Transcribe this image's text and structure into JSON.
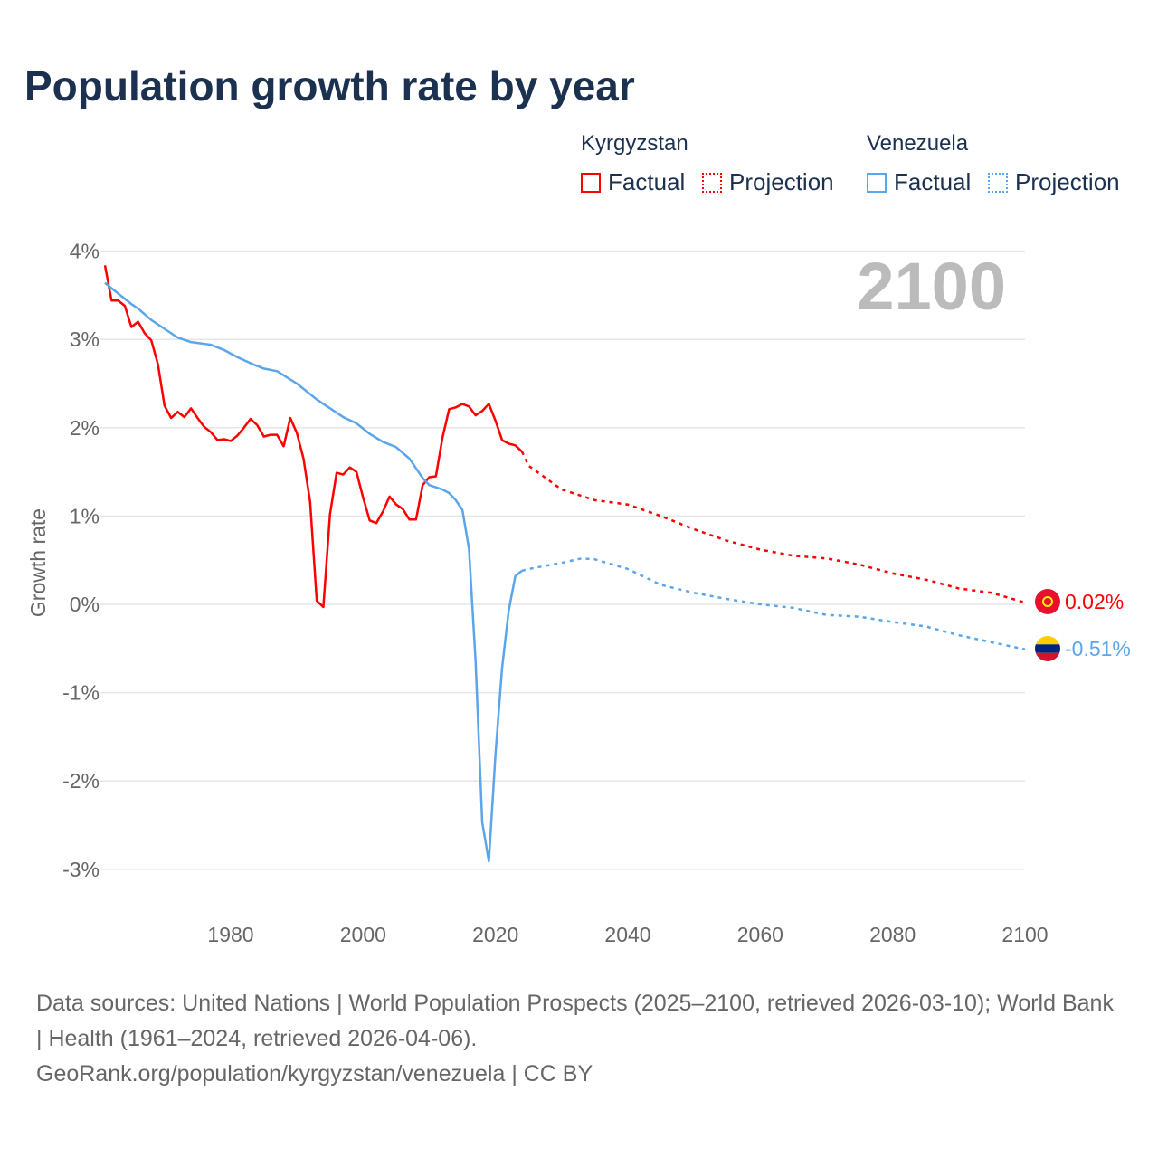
{
  "chart_data": {
    "type": "line",
    "title": "Population growth rate by year",
    "ylabel": "Growth rate",
    "xlabel": "",
    "ylim": [
      -3,
      4
    ],
    "xlim": [
      1961,
      2100
    ],
    "yticks": [
      "-3%",
      "-2%",
      "-1%",
      "0%",
      "1%",
      "2%",
      "3%",
      "4%"
    ],
    "ytick_values": [
      -3,
      -2,
      -1,
      0,
      1,
      2,
      3,
      4
    ],
    "xticks": [
      "1980",
      "2000",
      "2020",
      "2040",
      "2060",
      "2080",
      "2100"
    ],
    "xtick_values": [
      1980,
      2000,
      2020,
      2040,
      2060,
      2080,
      2100
    ],
    "year_label": "2100",
    "legend": {
      "groups": [
        {
          "name": "Kyrgyzstan",
          "factual": "Factual",
          "projection": "Projection"
        },
        {
          "name": "Venezuela",
          "factual": "Factual",
          "projection": "Projection"
        }
      ],
      "placement": "top-right"
    },
    "series": [
      {
        "name": "Kyrgyzstan",
        "kind": "factual",
        "color": "#ff0000",
        "x": [
          1961,
          1962,
          1963,
          1964,
          1965,
          1966,
          1967,
          1968,
          1969,
          1970,
          1971,
          1972,
          1973,
          1974,
          1975,
          1976,
          1977,
          1978,
          1979,
          1980,
          1981,
          1982,
          1983,
          1984,
          1985,
          1986,
          1987,
          1988,
          1989,
          1990,
          1991,
          1992,
          1993,
          1994,
          1995,
          1996,
          1997,
          1998,
          1999,
          2000,
          2001,
          2002,
          2003,
          2004,
          2005,
          2006,
          2007,
          2008,
          2009,
          2010,
          2011,
          2012,
          2013,
          2014,
          2015,
          2016,
          2017,
          2018,
          2019,
          2020,
          2021,
          2022,
          2023,
          2024
        ],
        "y": [
          3.84,
          3.44,
          3.44,
          3.38,
          3.14,
          3.2,
          3.07,
          2.99,
          2.72,
          2.25,
          2.11,
          2.18,
          2.12,
          2.22,
          2.11,
          2.01,
          1.95,
          1.86,
          1.87,
          1.85,
          1.91,
          2.0,
          2.1,
          2.03,
          1.9,
          1.92,
          1.92,
          1.79,
          2.11,
          1.94,
          1.65,
          1.16,
          0.04,
          -0.03,
          1.02,
          1.49,
          1.47,
          1.55,
          1.5,
          1.21,
          0.95,
          0.92,
          1.05,
          1.22,
          1.13,
          1.08,
          0.96,
          0.96,
          1.35,
          1.44,
          1.45,
          1.89,
          2.21,
          2.23,
          2.27,
          2.24,
          2.14,
          2.19,
          2.27,
          2.08,
          1.86,
          1.82,
          1.8,
          1.73
        ]
      },
      {
        "name": "Kyrgyzstan",
        "kind": "projection",
        "color": "#ff0000",
        "x": [
          2024,
          2025,
          2030,
          2035,
          2040,
          2045,
          2050,
          2055,
          2060,
          2065,
          2070,
          2075,
          2080,
          2085,
          2090,
          2095,
          2100
        ],
        "y": [
          1.73,
          1.57,
          1.3,
          1.18,
          1.13,
          1.0,
          0.85,
          0.72,
          0.62,
          0.55,
          0.52,
          0.45,
          0.35,
          0.28,
          0.18,
          0.13,
          0.02
        ]
      },
      {
        "name": "Venezuela",
        "kind": "factual",
        "color": "#5aa5eb",
        "x": [
          1961,
          1965,
          1966,
          1968,
          1970,
          1972,
          1974,
          1977,
          1979,
          1981,
          1983,
          1985,
          1987,
          1990,
          1993,
          1995,
          1997,
          1999,
          2001,
          2003,
          2005,
          2007,
          2009,
          2010,
          2012,
          2013,
          2014,
          2015,
          2016,
          2017,
          2018,
          2019,
          2020,
          2021,
          2022,
          2023,
          2024
        ],
        "y": [
          3.64,
          3.4,
          3.35,
          3.22,
          3.12,
          3.02,
          2.97,
          2.94,
          2.88,
          2.8,
          2.73,
          2.67,
          2.64,
          2.5,
          2.32,
          2.22,
          2.12,
          2.05,
          1.93,
          1.84,
          1.78,
          1.65,
          1.43,
          1.35,
          1.3,
          1.26,
          1.18,
          1.07,
          0.63,
          -0.65,
          -2.47,
          -2.91,
          -1.7,
          -0.72,
          -0.07,
          0.32,
          0.38
        ]
      },
      {
        "name": "Venezuela",
        "kind": "projection",
        "color": "#5aa5eb",
        "x": [
          2024,
          2025,
          2030,
          2033,
          2035,
          2040,
          2045,
          2050,
          2055,
          2060,
          2065,
          2070,
          2075,
          2080,
          2085,
          2090,
          2095,
          2100
        ],
        "y": [
          0.38,
          0.4,
          0.47,
          0.52,
          0.51,
          0.4,
          0.22,
          0.13,
          0.06,
          0.0,
          -0.04,
          -0.12,
          -0.14,
          -0.2,
          -0.25,
          -0.35,
          -0.43,
          -0.51
        ]
      }
    ],
    "end_labels": [
      {
        "name": "Kyrgyzstan",
        "text": "0.02%",
        "value": 0.02,
        "color": "#ff0000"
      },
      {
        "name": "Venezuela",
        "text": "-0.51%",
        "value": -0.51,
        "color": "#5aa5eb"
      }
    ]
  },
  "source": {
    "line1": "Data sources: United Nations | World Population Prospects (2025–2100, retrieved 2026-03-10); World Bank | Health (1961–2024, retrieved 2026-04-06).",
    "line2": "GeoRank.org/population/kyrgyzstan/venezuela | CC BY"
  }
}
